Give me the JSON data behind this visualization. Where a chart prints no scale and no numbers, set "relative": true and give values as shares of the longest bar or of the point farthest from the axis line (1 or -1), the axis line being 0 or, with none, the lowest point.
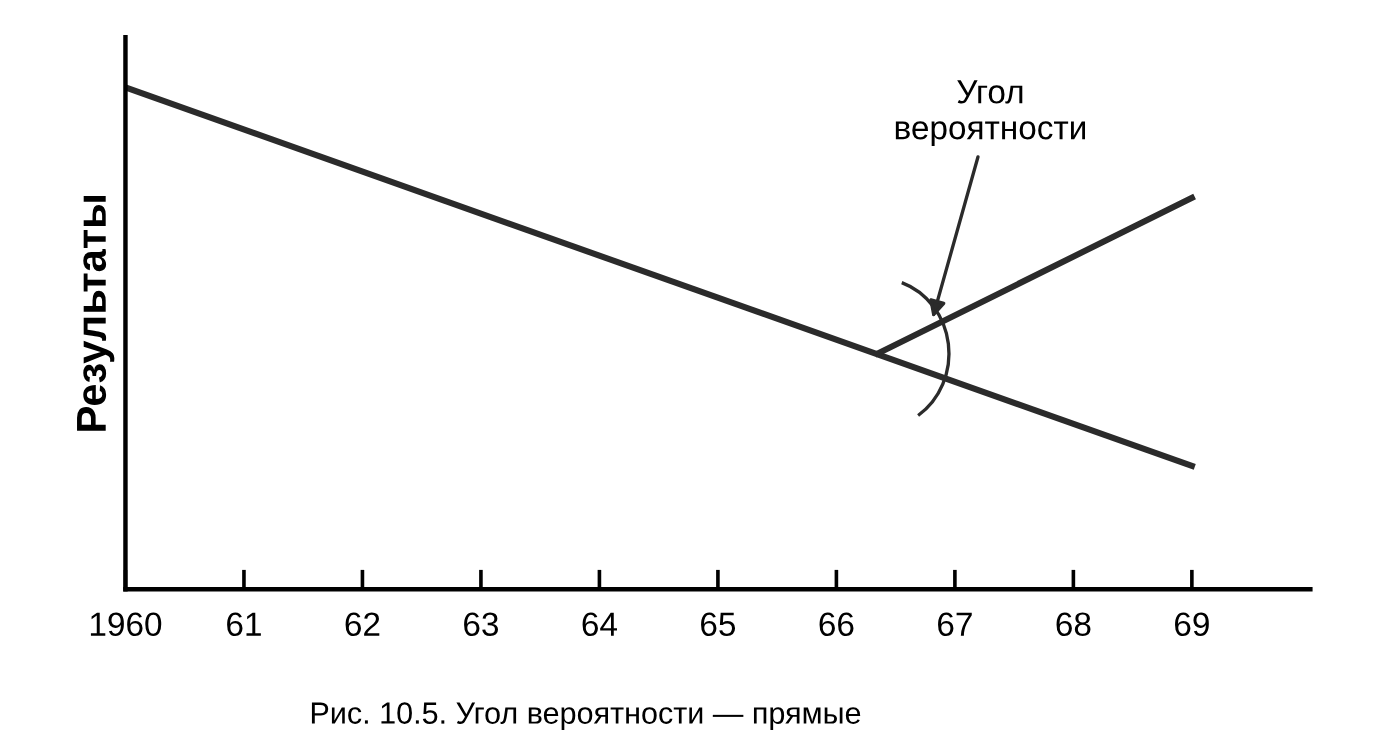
{
  "chart_data": {
    "type": "line",
    "relative": true,
    "ylabel": "Результаты",
    "xlim": [
      1960,
      1970
    ],
    "xticks": [
      {
        "value": 1960,
        "label": "1960"
      },
      {
        "value": 1961,
        "label": "61"
      },
      {
        "value": 1962,
        "label": "62"
      },
      {
        "value": 1963,
        "label": "63"
      },
      {
        "value": 1964,
        "label": "64"
      },
      {
        "value": 1965,
        "label": "65"
      },
      {
        "value": 1966,
        "label": "66"
      },
      {
        "value": 1967,
        "label": "67"
      },
      {
        "value": 1968,
        "label": "68"
      },
      {
        "value": 1969,
        "label": "69"
      }
    ],
    "series": [
      {
        "color": "#2b2b2b",
        "x": [
          1960,
          1969
        ],
        "values": [
          1,
          0.246
        ]
      },
      {
        "color": "#2b2b2b",
        "x": [
          1966.35,
          1969
        ],
        "values": [
          0.47,
          0.78
        ]
      }
    ],
    "annotations": [
      {
        "text": "Угол\nвероятности",
        "x": 1966.8,
        "y": 0.53
      },
      "Рис. 10.5. Угол вероятности — прямые"
    ],
    "marker": "none",
    "line_style": "solid",
    "grid": false,
    "legend": false
  }
}
